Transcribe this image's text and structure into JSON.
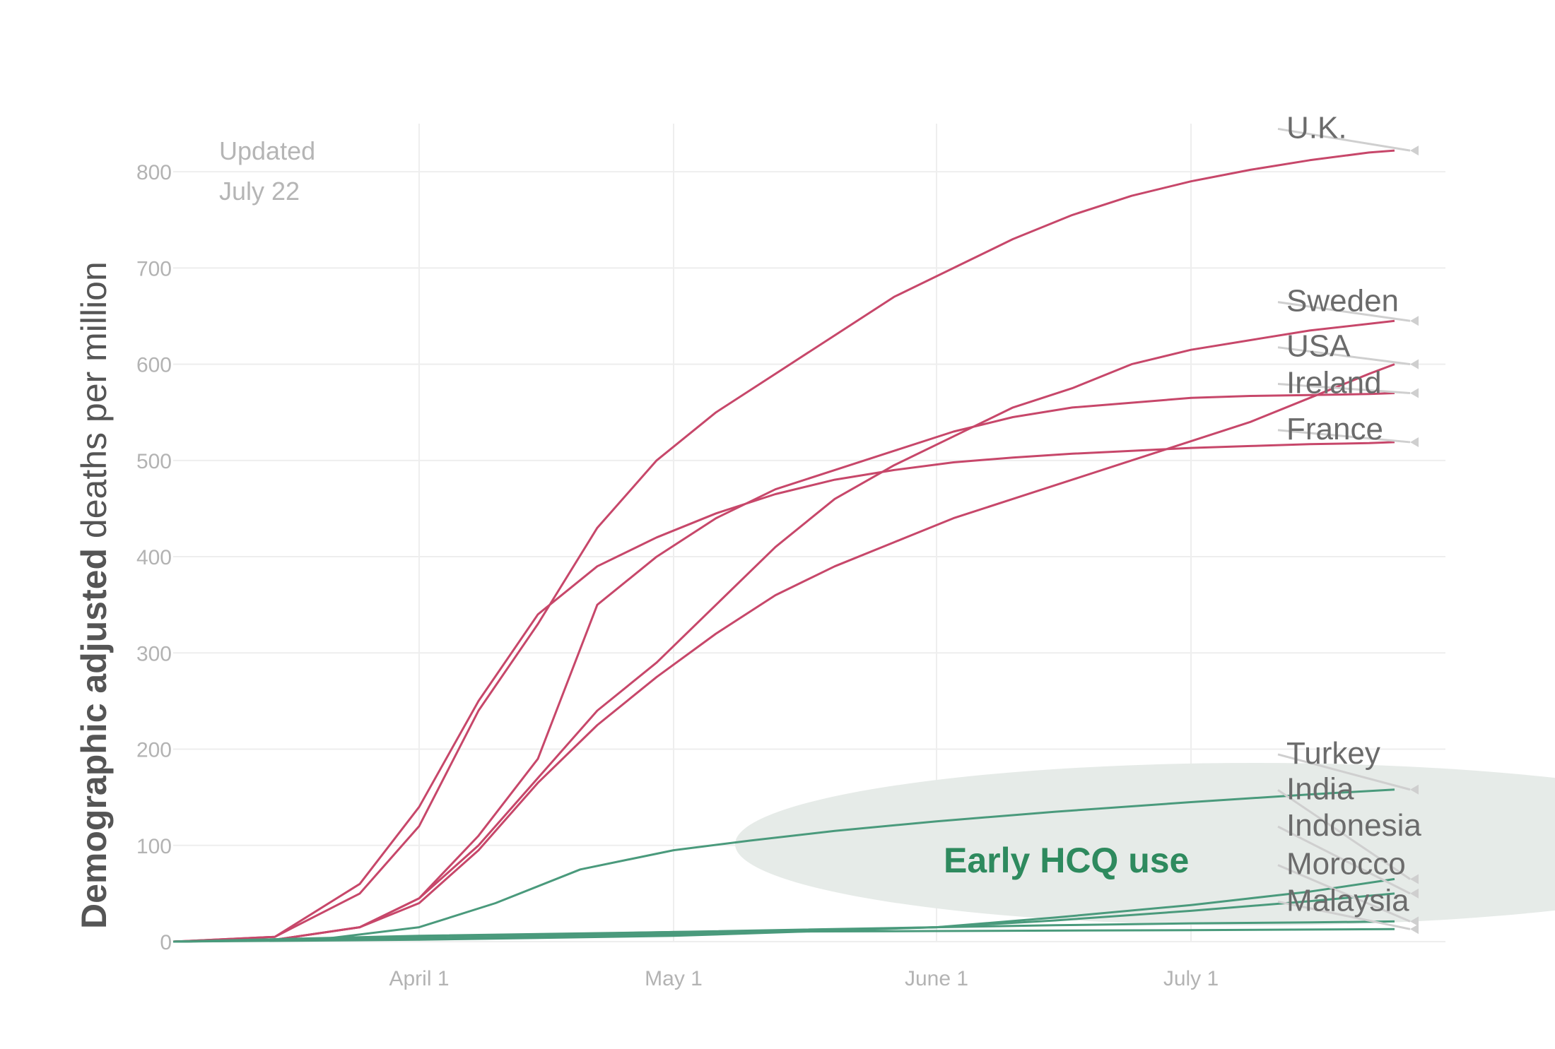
{
  "note": {
    "line1": "Updated",
    "line2": "July 22"
  },
  "annotation": {
    "text": "Early HCQ use",
    "color": "#2e8a5e",
    "ellipse_color": "#e6ebe8"
  },
  "colors": {
    "red": "#c7476a",
    "green": "#4a9a7c",
    "grid": "#eeeeee",
    "arrow": "#cfcfcf"
  },
  "chart_data": {
    "type": "line",
    "ylabel_bold": "Demographic adjusted",
    "ylabel_rest": " deaths per million",
    "xlabel": "",
    "ylim": [
      0,
      850
    ],
    "yticks": [
      0,
      100,
      200,
      300,
      400,
      500,
      600,
      700,
      800
    ],
    "xlim": [
      "2020-03-03",
      "2020-07-31"
    ],
    "xticks": [
      {
        "date": "2020-04-01",
        "label": "April 1"
      },
      {
        "date": "2020-05-01",
        "label": "May 1"
      },
      {
        "date": "2020-06-01",
        "label": "June 1"
      },
      {
        "date": "2020-07-01",
        "label": "July 1"
      }
    ],
    "grid": true,
    "series": [
      {
        "name": "U.K.",
        "group": "red",
        "label_value": 835,
        "points": [
          [
            "2020-03-03",
            0
          ],
          [
            "2020-03-15",
            5
          ],
          [
            "2020-03-25",
            50
          ],
          [
            "2020-04-01",
            120
          ],
          [
            "2020-04-08",
            240
          ],
          [
            "2020-04-15",
            330
          ],
          [
            "2020-04-22",
            430
          ],
          [
            "2020-04-29",
            500
          ],
          [
            "2020-05-06",
            550
          ],
          [
            "2020-05-13",
            590
          ],
          [
            "2020-05-20",
            630
          ],
          [
            "2020-05-27",
            670
          ],
          [
            "2020-06-03",
            700
          ],
          [
            "2020-06-10",
            730
          ],
          [
            "2020-06-17",
            755
          ],
          [
            "2020-06-24",
            775
          ],
          [
            "2020-07-01",
            790
          ],
          [
            "2020-07-08",
            802
          ],
          [
            "2020-07-15",
            812
          ],
          [
            "2020-07-22",
            820
          ],
          [
            "2020-07-25",
            822
          ]
        ]
      },
      {
        "name": "Sweden",
        "group": "red",
        "label_value": 655,
        "points": [
          [
            "2020-03-03",
            0
          ],
          [
            "2020-03-15",
            2
          ],
          [
            "2020-03-25",
            15
          ],
          [
            "2020-04-01",
            45
          ],
          [
            "2020-04-08",
            100
          ],
          [
            "2020-04-15",
            170
          ],
          [
            "2020-04-22",
            240
          ],
          [
            "2020-04-29",
            290
          ],
          [
            "2020-05-06",
            350
          ],
          [
            "2020-05-13",
            410
          ],
          [
            "2020-05-20",
            460
          ],
          [
            "2020-05-27",
            495
          ],
          [
            "2020-06-03",
            525
          ],
          [
            "2020-06-10",
            555
          ],
          [
            "2020-06-17",
            575
          ],
          [
            "2020-06-24",
            600
          ],
          [
            "2020-07-01",
            615
          ],
          [
            "2020-07-08",
            625
          ],
          [
            "2020-07-15",
            635
          ],
          [
            "2020-07-22",
            642
          ],
          [
            "2020-07-25",
            645
          ]
        ]
      },
      {
        "name": "USA",
        "group": "red",
        "label_value": 608,
        "points": [
          [
            "2020-03-03",
            0
          ],
          [
            "2020-03-15",
            2
          ],
          [
            "2020-03-25",
            15
          ],
          [
            "2020-04-01",
            40
          ],
          [
            "2020-04-08",
            95
          ],
          [
            "2020-04-15",
            165
          ],
          [
            "2020-04-22",
            225
          ],
          [
            "2020-04-29",
            275
          ],
          [
            "2020-05-06",
            320
          ],
          [
            "2020-05-13",
            360
          ],
          [
            "2020-05-20",
            390
          ],
          [
            "2020-05-27",
            415
          ],
          [
            "2020-06-03",
            440
          ],
          [
            "2020-06-10",
            460
          ],
          [
            "2020-06-17",
            480
          ],
          [
            "2020-06-24",
            500
          ],
          [
            "2020-07-01",
            520
          ],
          [
            "2020-07-08",
            540
          ],
          [
            "2020-07-15",
            565
          ],
          [
            "2020-07-22",
            590
          ],
          [
            "2020-07-25",
            600
          ]
        ]
      },
      {
        "name": "Ireland",
        "group": "red",
        "label_value": 570,
        "points": [
          [
            "2020-03-03",
            0
          ],
          [
            "2020-03-15",
            2
          ],
          [
            "2020-03-25",
            15
          ],
          [
            "2020-04-01",
            45
          ],
          [
            "2020-04-08",
            110
          ],
          [
            "2020-04-15",
            190
          ],
          [
            "2020-04-22",
            350
          ],
          [
            "2020-04-29",
            400
          ],
          [
            "2020-05-06",
            440
          ],
          [
            "2020-05-13",
            470
          ],
          [
            "2020-05-20",
            490
          ],
          [
            "2020-05-27",
            510
          ],
          [
            "2020-06-03",
            530
          ],
          [
            "2020-06-10",
            545
          ],
          [
            "2020-06-17",
            555
          ],
          [
            "2020-06-24",
            560
          ],
          [
            "2020-07-01",
            565
          ],
          [
            "2020-07-08",
            567
          ],
          [
            "2020-07-15",
            568
          ],
          [
            "2020-07-22",
            569
          ],
          [
            "2020-07-25",
            570
          ]
        ]
      },
      {
        "name": "France",
        "group": "red",
        "label_value": 522,
        "points": [
          [
            "2020-03-03",
            0
          ],
          [
            "2020-03-15",
            5
          ],
          [
            "2020-03-25",
            60
          ],
          [
            "2020-04-01",
            140
          ],
          [
            "2020-04-08",
            250
          ],
          [
            "2020-04-15",
            340
          ],
          [
            "2020-04-22",
            390
          ],
          [
            "2020-04-29",
            420
          ],
          [
            "2020-05-06",
            445
          ],
          [
            "2020-05-13",
            465
          ],
          [
            "2020-05-20",
            480
          ],
          [
            "2020-05-27",
            490
          ],
          [
            "2020-06-03",
            498
          ],
          [
            "2020-06-10",
            503
          ],
          [
            "2020-06-17",
            507
          ],
          [
            "2020-06-24",
            510
          ],
          [
            "2020-07-01",
            513
          ],
          [
            "2020-07-08",
            515
          ],
          [
            "2020-07-15",
            517
          ],
          [
            "2020-07-22",
            518
          ],
          [
            "2020-07-25",
            519
          ]
        ]
      },
      {
        "name": "Turkey",
        "group": "green",
        "label_value": 185,
        "points": [
          [
            "2020-03-03",
            0
          ],
          [
            "2020-03-20",
            2
          ],
          [
            "2020-04-01",
            15
          ],
          [
            "2020-04-10",
            40
          ],
          [
            "2020-04-20",
            75
          ],
          [
            "2020-05-01",
            95
          ],
          [
            "2020-05-10",
            105
          ],
          [
            "2020-05-20",
            115
          ],
          [
            "2020-06-01",
            125
          ],
          [
            "2020-06-15",
            135
          ],
          [
            "2020-07-01",
            145
          ],
          [
            "2020-07-15",
            153
          ],
          [
            "2020-07-25",
            158
          ]
        ]
      },
      {
        "name": "India",
        "group": "green",
        "label_value": 148,
        "points": [
          [
            "2020-03-03",
            0
          ],
          [
            "2020-04-01",
            2
          ],
          [
            "2020-05-01",
            6
          ],
          [
            "2020-06-01",
            15
          ],
          [
            "2020-06-15",
            25
          ],
          [
            "2020-07-01",
            38
          ],
          [
            "2020-07-15",
            52
          ],
          [
            "2020-07-25",
            65
          ]
        ]
      },
      {
        "name": "Indonesia",
        "group": "green",
        "label_value": 110,
        "points": [
          [
            "2020-03-03",
            0
          ],
          [
            "2020-04-01",
            3
          ],
          [
            "2020-05-01",
            8
          ],
          [
            "2020-06-01",
            15
          ],
          [
            "2020-06-15",
            22
          ],
          [
            "2020-07-01",
            32
          ],
          [
            "2020-07-15",
            42
          ],
          [
            "2020-07-25",
            50
          ]
        ]
      },
      {
        "name": "Morocco",
        "group": "green",
        "label_value": 70,
        "points": [
          [
            "2020-03-03",
            0
          ],
          [
            "2020-04-01",
            5
          ],
          [
            "2020-05-01",
            10
          ],
          [
            "2020-06-01",
            15
          ],
          [
            "2020-06-15",
            17
          ],
          [
            "2020-07-01",
            19
          ],
          [
            "2020-07-15",
            20
          ],
          [
            "2020-07-25",
            21
          ]
        ]
      },
      {
        "name": "Malaysia",
        "group": "green",
        "label_value": 32,
        "points": [
          [
            "2020-03-03",
            0
          ],
          [
            "2020-04-01",
            6
          ],
          [
            "2020-05-01",
            10
          ],
          [
            "2020-06-01",
            11
          ],
          [
            "2020-07-01",
            12
          ],
          [
            "2020-07-25",
            13
          ]
        ]
      }
    ]
  }
}
